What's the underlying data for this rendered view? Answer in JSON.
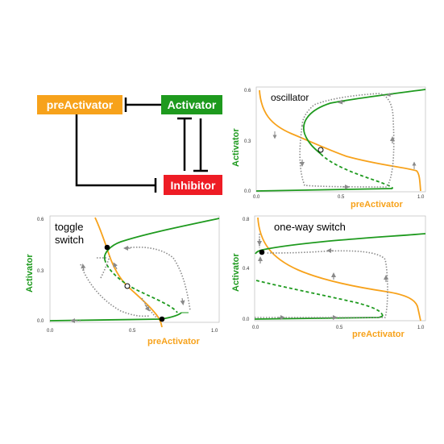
{
  "network": {
    "nodes": {
      "preactivator": "preActivator",
      "activator": "Activator",
      "inhibitor": "Inhibitor"
    },
    "colors": {
      "preactivator": "#f7a21b",
      "activator": "#1e9a1e",
      "inhibitor": "#ee1c25"
    }
  },
  "panels": [
    {
      "label": "oscillator",
      "ylabel": "Activator",
      "xlabel": "preActivator",
      "yticks": [
        "0.0",
        "0.3",
        "0.6"
      ],
      "xticks": [
        "0.0",
        "0.5",
        "1.0"
      ]
    },
    {
      "label_line1": "toggle",
      "label_line2": "switch",
      "ylabel": "Activator",
      "xlabel": "preActivator",
      "yticks": [
        "0.0",
        "0.3",
        "0.6"
      ],
      "xticks": [
        "0.0",
        "0.5",
        "1.0"
      ]
    },
    {
      "label": "one-way switch",
      "ylabel": "Activator",
      "xlabel": "preActivator",
      "yticks": [
        "0.0",
        "0.4",
        "0.8"
      ],
      "xticks": [
        "0.0",
        "0.5",
        "1.0"
      ]
    }
  ],
  "colors": {
    "activator_curve": "#1e9a1e",
    "preactivator_curve": "#f7a21b",
    "trajectory": "#8a8a8a"
  }
}
